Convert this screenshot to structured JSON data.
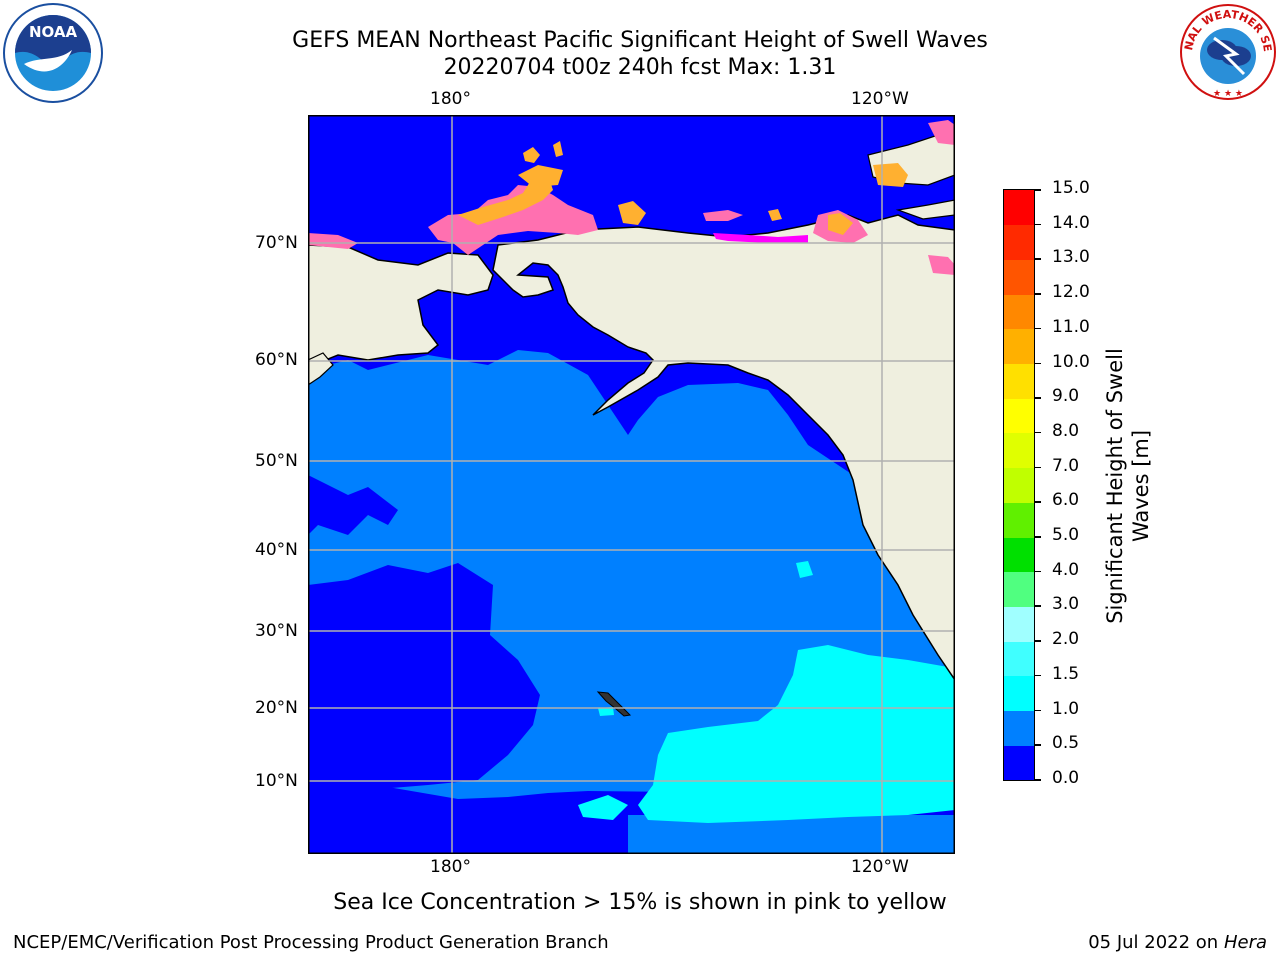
{
  "title": {
    "line1": "GEFS MEAN Northeast Pacific Significant Height of Swell Waves",
    "line2": "20220704 t00z 240h fcst   Max: 1.31"
  },
  "map": {
    "lon_labels_top": [
      "180°",
      "120°W"
    ],
    "lon_labels_bottom": [
      "180°",
      "120°W"
    ],
    "lat_labels": [
      "70°N",
      "60°N",
      "50°N",
      "40°N",
      "30°N",
      "20°N",
      "10°N"
    ]
  },
  "colorbar": {
    "label_line1": "Significant Height of Swell",
    "label_line2": "Waves [m]",
    "ticks": [
      "0.0",
      "0.5",
      "1.0",
      "1.5",
      "2.0",
      "3.0",
      "4.0",
      "5.0",
      "6.0",
      "7.0",
      "8.0",
      "9.0",
      "10.0",
      "11.0",
      "12.0",
      "13.0",
      "14.0",
      "15.0"
    ],
    "colors": [
      "#0000ff",
      "#0080ff",
      "#00ffff",
      "#40ffff",
      "#a0ffff",
      "#50ff80",
      "#00e000",
      "#60f000",
      "#c0ff00",
      "#e0ff00",
      "#ffff00",
      "#ffe000",
      "#ffb000",
      "#ff8800",
      "#ff5500",
      "#ff2a00",
      "#ff0000"
    ]
  },
  "colors": {
    "land": "#efefdf",
    "grid": "#b0b0b0",
    "ice_pink": "#ff70b0",
    "ice_orange": "#ffb030",
    "ice_magenta": "#ff00ff"
  },
  "caption": "Sea Ice Concentration > 15% is shown in pink to yellow",
  "footer": {
    "left": "NCEP/EMC/Verification Post Processing Product Generation Branch",
    "right_prefix": "05 Jul 2022 on ",
    "right_host": "Hera"
  },
  "logos": {
    "noaa_text": "NOAA",
    "nws_text": "NATIONAL WEATHER SERVICE"
  }
}
